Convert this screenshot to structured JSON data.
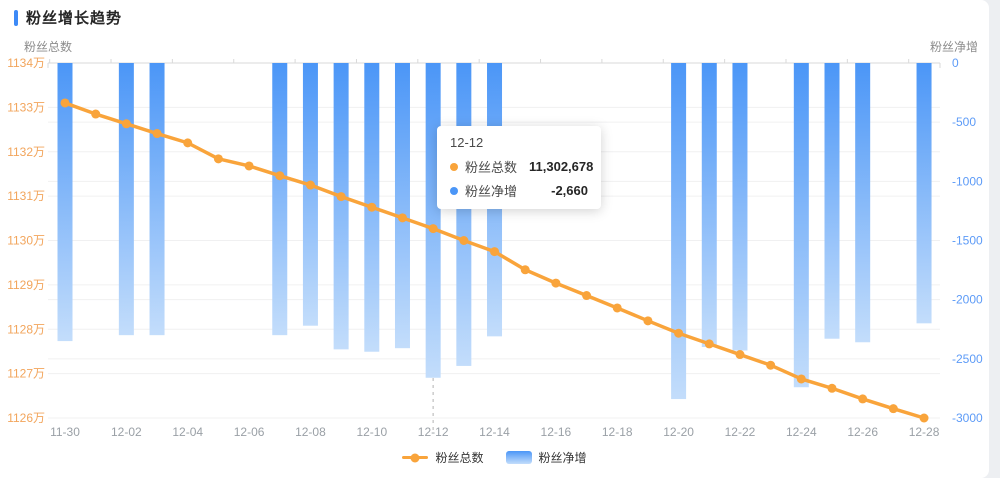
{
  "header": {
    "title": "粉丝增长趋势"
  },
  "left_axis_name": "粉丝总数",
  "right_axis_name": "粉丝净增",
  "legend": {
    "total_label": "粉丝总数",
    "net_label": "粉丝净增"
  },
  "tooltip": {
    "date": "12-12",
    "total_label": "粉丝总数",
    "total_value": "11,302,678",
    "net_label": "粉丝净增",
    "net_value": "-2,660"
  },
  "colors": {
    "accent_title_marker": "#3d8af7",
    "line": "#f9a43b",
    "bar_top": "#4b96f7",
    "bar_bottom": "#c3ddfb",
    "left_tick_label": "#f2a55c",
    "right_tick_label": "#5d9bf7",
    "x_tick_label": "#9aa0a6",
    "grid": "#f0f0f1",
    "axis_line": "#d9d9d9",
    "dashed_indicator": "#cccccc"
  },
  "chart_data": {
    "type": "combo-line-bar-dual-axis",
    "title": "粉丝增长趋势",
    "x": [
      "11-30",
      "12-01",
      "12-02",
      "12-03",
      "12-04",
      "12-05",
      "12-06",
      "12-07",
      "12-08",
      "12-09",
      "12-10",
      "12-11",
      "12-12",
      "12-13",
      "12-14",
      "12-15",
      "12-16",
      "12-17",
      "12-18",
      "12-19",
      "12-20",
      "12-21",
      "12-22",
      "12-23",
      "12-24",
      "12-25",
      "12-26",
      "12-27",
      "12-28"
    ],
    "x_tick_labels": [
      "11-30",
      "12-02",
      "12-04",
      "12-06",
      "12-08",
      "12-10",
      "12-12",
      "12-14",
      "12-16",
      "12-18",
      "12-20",
      "12-22",
      "12-24",
      "12-26",
      "12-28"
    ],
    "series": [
      {
        "name": "粉丝总数",
        "type": "line",
        "axis": "left",
        "values": [
          11331000,
          11328500,
          11326300,
          11324100,
          11322000,
          11318400,
          11316800,
          11314600,
          11312500,
          11309900,
          11307500,
          11305100,
          11302678,
          11300000,
          11297500,
          11293400,
          11290400,
          11287600,
          11284800,
          11281900,
          11279100,
          11276700,
          11274300,
          11271900,
          11268800,
          11266700,
          11264300,
          11262100,
          11260000
        ]
      },
      {
        "name": "粉丝净增",
        "type": "bar",
        "axis": "right",
        "values": [
          -2350,
          null,
          -2300,
          -2300,
          null,
          null,
          null,
          -2300,
          -2220,
          -2420,
          -2440,
          -2410,
          -2660,
          -2560,
          -2310,
          null,
          null,
          null,
          null,
          null,
          -2840,
          -2400,
          -2430,
          null,
          -2740,
          -2330,
          -2360,
          null,
          -2200
        ]
      }
    ],
    "left_axis": {
      "ticks": [
        "1134万",
        "1133万",
        "1132万",
        "1131万",
        "1130万",
        "1129万",
        "1128万",
        "1127万",
        "1126万"
      ],
      "min": 11260000,
      "max": 11340000
    },
    "right_axis": {
      "ticks": [
        "0",
        "-500",
        "-1000",
        "-1500",
        "-2000",
        "-2500",
        "-3000"
      ],
      "min": -3000,
      "max": 0
    },
    "highlight_index": 12,
    "grid": true,
    "legend_position": "bottom"
  }
}
